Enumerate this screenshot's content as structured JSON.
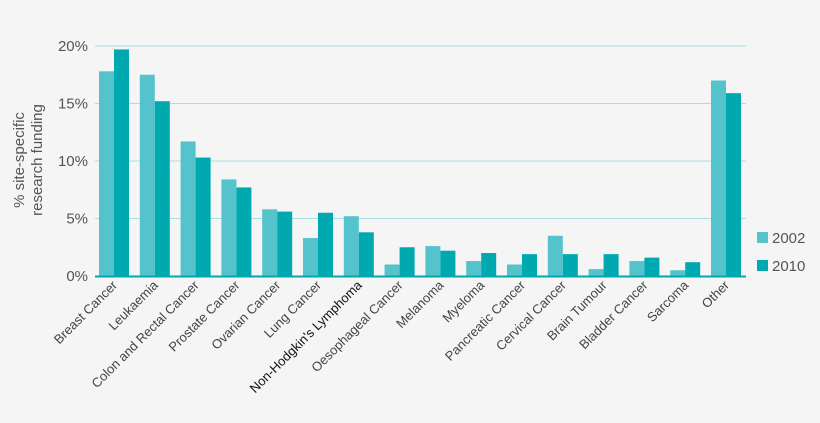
{
  "chart_data": {
    "type": "bar",
    "ylabel_lines": [
      "% site-specific",
      "research funding"
    ],
    "ylim": [
      0,
      20
    ],
    "yticks": [
      0,
      5,
      10,
      15,
      20
    ],
    "ytick_labels": [
      "0%",
      "5%",
      "10%",
      "15%",
      "20%"
    ],
    "grid": true,
    "legend_position": "right",
    "categories": [
      "Breast Cancer",
      "Leukaemia",
      "Colon and Rectal Cancer",
      "Prostate Cancer",
      "Ovarian Cancer",
      "Lung Cancer",
      "Non-Hodgkin's Lymphoma",
      "Oesophageal Cancer",
      "Melanoma",
      "Myeloma",
      "Pancreatic Cancer",
      "Cervical Cancer",
      "Brain Tumour",
      "Bladder Cancer",
      "Sarcoma",
      "Other"
    ],
    "series": [
      {
        "name": "2002",
        "color": "#55c3cc",
        "values": [
          17.8,
          17.5,
          11.7,
          8.4,
          5.8,
          3.3,
          5.2,
          1.0,
          2.6,
          1.3,
          1.0,
          3.5,
          0.6,
          1.3,
          0.5,
          17.0
        ]
      },
      {
        "name": "2010",
        "color": "#00a8b0",
        "values": [
          19.7,
          15.2,
          10.3,
          7.7,
          5.6,
          5.5,
          3.8,
          2.5,
          2.2,
          2.0,
          1.9,
          1.9,
          1.9,
          1.6,
          1.2,
          15.9
        ]
      }
    ],
    "colors": {
      "grid": "#a8dfe2",
      "axis": "#00a8b0"
    }
  }
}
